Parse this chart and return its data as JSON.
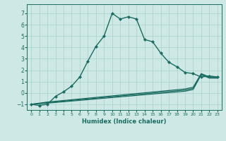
{
  "xlabel": "Humidex (Indice chaleur)",
  "ylabel": "",
  "bg_color": "#cde8e5",
  "grid_color": "#aed4d0",
  "line_color": "#1a6b60",
  "xlim": [
    -0.5,
    23.5
  ],
  "ylim": [
    -1.5,
    7.8
  ],
  "xticks": [
    0,
    1,
    2,
    3,
    4,
    5,
    6,
    7,
    8,
    9,
    10,
    11,
    12,
    13,
    14,
    15,
    16,
    17,
    18,
    19,
    20,
    21,
    22,
    23
  ],
  "yticks": [
    -1,
    0,
    1,
    2,
    3,
    4,
    5,
    6,
    7
  ],
  "series": [
    {
      "x": [
        0,
        1,
        2,
        3,
        4,
        5,
        6,
        7,
        8,
        9,
        10,
        11,
        12,
        13,
        14,
        15,
        16,
        17,
        18,
        19,
        20,
        21,
        22,
        23
      ],
      "y": [
        -1.0,
        -1.1,
        -1.0,
        -0.3,
        0.1,
        0.6,
        1.4,
        2.8,
        4.1,
        5.0,
        7.0,
        6.5,
        6.7,
        6.5,
        4.7,
        4.5,
        3.5,
        2.7,
        2.3,
        1.8,
        1.7,
        1.4,
        1.5,
        1.4
      ],
      "marker": "D",
      "lw": 1.0,
      "ms": 2.2
    },
    {
      "x": [
        0,
        2,
        19,
        20,
        21,
        22,
        23
      ],
      "y": [
        -1.0,
        -0.8,
        0.35,
        0.5,
        1.7,
        1.4,
        1.4
      ],
      "marker": null,
      "lw": 0.9,
      "ms": 0
    },
    {
      "x": [
        0,
        2,
        19,
        20,
        21,
        22,
        23
      ],
      "y": [
        -1.0,
        -0.85,
        0.25,
        0.4,
        1.65,
        1.35,
        1.35
      ],
      "marker": null,
      "lw": 0.9,
      "ms": 0
    },
    {
      "x": [
        0,
        2,
        19,
        20,
        21,
        22,
        23
      ],
      "y": [
        -1.0,
        -0.9,
        0.15,
        0.3,
        1.6,
        1.3,
        1.3
      ],
      "marker": null,
      "lw": 0.9,
      "ms": 0
    }
  ]
}
